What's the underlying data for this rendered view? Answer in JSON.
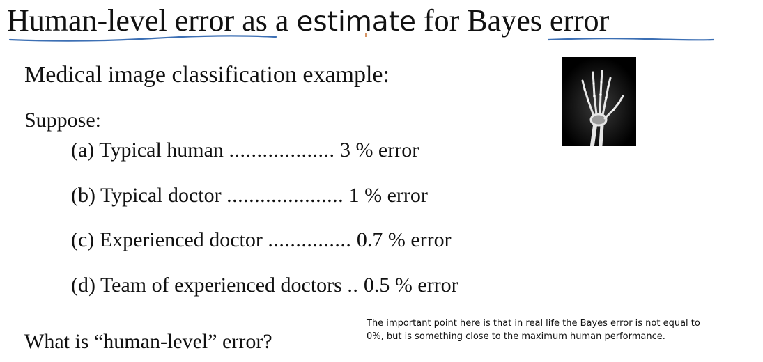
{
  "slide": {
    "title": {
      "part1": "Human-level error",
      "part2": " as a ",
      "part3": "estimate",
      "part4": " for ",
      "part5": "Bayes error"
    },
    "subtitle": "Medical image classification example:",
    "suppose_label": "Suppose:",
    "items": [
      {
        "label": "(a) Typical human ",
        "dots": "...................",
        "value": " 3 % error"
      },
      {
        "label": "(b) Typical doctor ",
        "dots": ".....................",
        "value": " 1 % error"
      },
      {
        "label": "(c) Experienced doctor ",
        "dots": "...............",
        "value": " 0.7 % error"
      },
      {
        "label": "(d) Team of experienced doctors ",
        "dots": "..",
        "value": " 0.5 % error"
      }
    ],
    "question": "What is “human-level” error?",
    "note": "The important point here is that in real life the Bayes error is not equal to 0%, but is something close to the maximum human performance.",
    "colors": {
      "ink": "#3c6fb4",
      "text": "#111111",
      "xray_bg": "#000000",
      "xray_bone": "#e6e6e6"
    },
    "image": {
      "icon": "hand-xray-icon"
    }
  }
}
